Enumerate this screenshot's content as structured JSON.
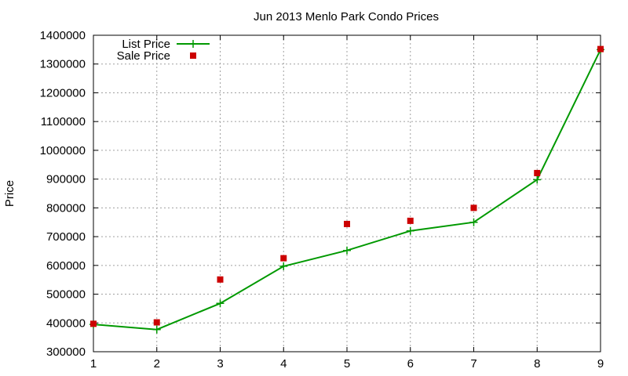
{
  "chart_data": {
    "type": "line",
    "title": "Jun 2013 Menlo Park Condo Prices",
    "xlabel": "",
    "ylabel": "Price",
    "xlim": [
      1,
      9
    ],
    "ylim": [
      300000,
      1400000
    ],
    "x_ticks": [
      1,
      2,
      3,
      4,
      5,
      6,
      7,
      8,
      9
    ],
    "y_ticks": [
      300000,
      400000,
      500000,
      600000,
      700000,
      800000,
      900000,
      1000000,
      1100000,
      1200000,
      1300000,
      1400000
    ],
    "grid": true,
    "legend_position": "top-left",
    "series": [
      {
        "name": "List Price",
        "style": "line-with-plus-markers",
        "color": "#009900",
        "x": [
          1,
          2,
          3,
          4,
          5,
          6,
          7,
          8,
          9
        ],
        "values": [
          395000,
          377000,
          468000,
          597000,
          652000,
          720000,
          750000,
          898000,
          1350000
        ]
      },
      {
        "name": "Sale Price",
        "style": "square-markers",
        "color": "#cc0000",
        "x": [
          1,
          2,
          3,
          4,
          5,
          6,
          7,
          8,
          9
        ],
        "values": [
          397000,
          402000,
          551000,
          625000,
          744000,
          755000,
          800000,
          921000,
          1352000
        ]
      }
    ]
  }
}
